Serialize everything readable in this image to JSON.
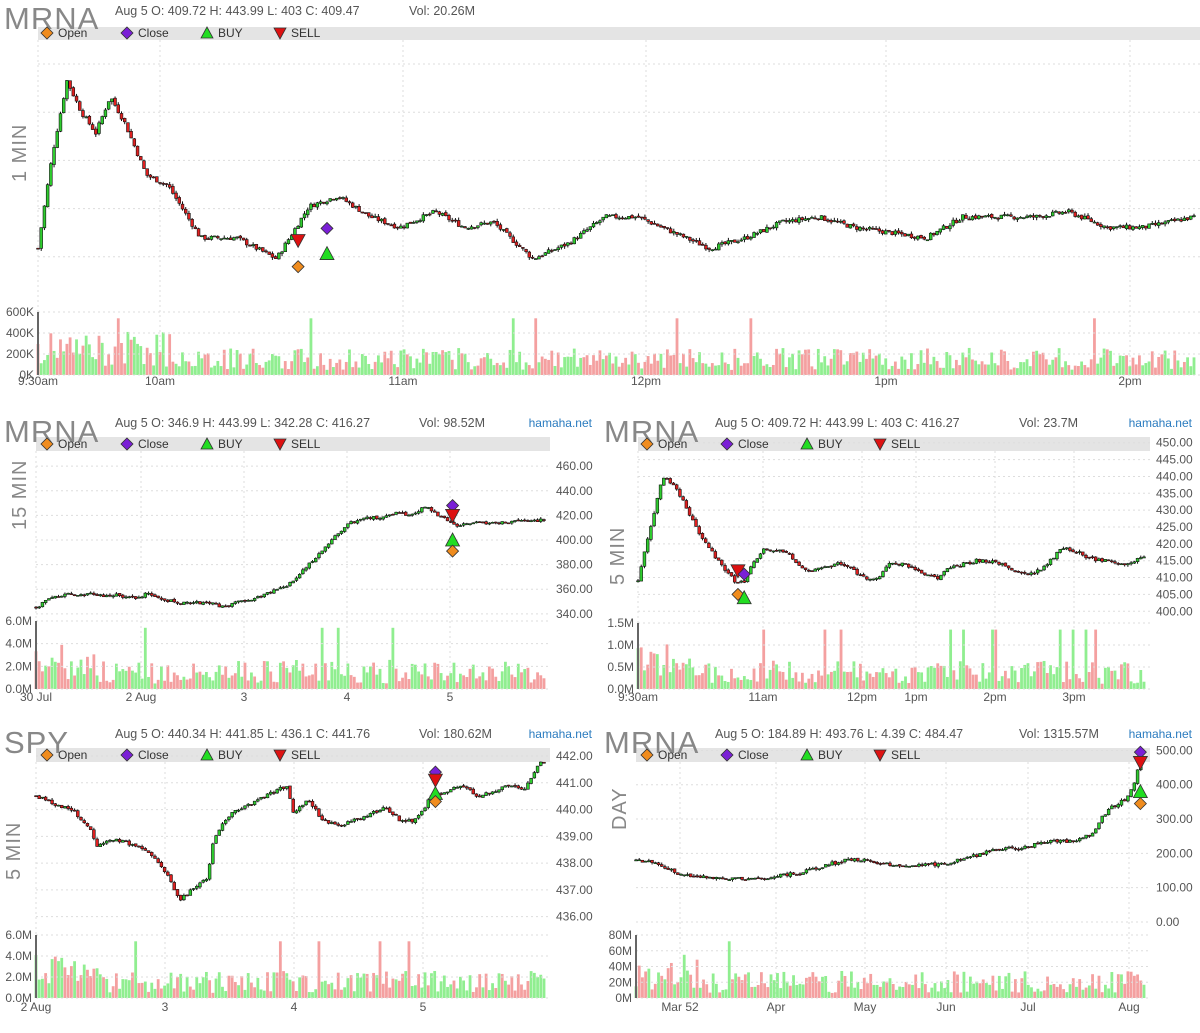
{
  "legend": {
    "open": "Open",
    "close": "Close",
    "buy": "BUY",
    "sell": "SELL"
  },
  "colors": {
    "up": "#2ecc2e",
    "down": "#e02020",
    "vol_up": "#90ee90",
    "vol_down": "#f4a0a0",
    "open_marker": "#f08c1e",
    "close_marker": "#7a1fd6",
    "buy_marker": "#22dd22",
    "sell_marker": "#dd1111",
    "band": "#e4e4e4",
    "grid": "#dddddd",
    "brand": "#2a7bbf"
  },
  "panels": [
    {
      "ticker": "MRNA",
      "timeframe": "1 MIN",
      "ohlc": "Aug 5 O: 409.72 H: 443.99 L: 403 C: 409.47",
      "vol": "Vol: 20.26M",
      "brand": "",
      "chart_data": {
        "type": "candlestick",
        "x_labels": [
          "9:30am",
          "10am",
          "11am",
          "12pm",
          "1pm",
          "2pm"
        ],
        "y_ticks": [],
        "volume_ticks": [
          "600K",
          "400K",
          "200K",
          "0K"
        ],
        "approx_close_path": [
          [
            0,
            407
          ],
          [
            4,
            425
          ],
          [
            8,
            439
          ],
          [
            12,
            433
          ],
          [
            16,
            429
          ],
          [
            20,
            436
          ],
          [
            24,
            431
          ],
          [
            30,
            421
          ],
          [
            36,
            419
          ],
          [
            45,
            409
          ],
          [
            55,
            409
          ],
          [
            66,
            405
          ],
          [
            75,
            415
          ],
          [
            83,
            417
          ],
          [
            92,
            413
          ],
          [
            100,
            411
          ],
          [
            110,
            414
          ],
          [
            118,
            411
          ],
          [
            126,
            412
          ],
          [
            137,
            405
          ],
          [
            147,
            408
          ],
          [
            157,
            413
          ],
          [
            166,
            413
          ],
          [
            176,
            410
          ],
          [
            186,
            407
          ],
          [
            196,
            409
          ],
          [
            206,
            412
          ],
          [
            216,
            413
          ],
          [
            226,
            411
          ],
          [
            236,
            410
          ],
          [
            246,
            409
          ],
          [
            256,
            413
          ],
          [
            266,
            413
          ],
          [
            276,
            413
          ],
          [
            285,
            414
          ],
          [
            296,
            411
          ],
          [
            306,
            411
          ],
          [
            320,
            413
          ]
        ],
        "markers": [
          {
            "type": "SELL",
            "x": 72,
            "value": 408.5
          },
          {
            "type": "Open",
            "x": 72,
            "value": 403.5
          },
          {
            "type": "Close",
            "x": 80,
            "value": 410.8
          },
          {
            "type": "BUY",
            "x": 80,
            "value": 406.0
          }
        ]
      }
    },
    {
      "ticker": "MRNA",
      "timeframe": "15 MIN",
      "ohlc": "Aug 5 O: 346.9 H: 443.99 L: 342.28 C: 416.27",
      "vol": "Vol: 98.52M",
      "brand": "hamaha.net",
      "chart_data": {
        "type": "candlestick",
        "x_labels": [
          "30 Jul",
          "2 Aug",
          "3",
          "4",
          "5"
        ],
        "y_ticks": [
          "460.00",
          "440.00",
          "420.00",
          "400.00",
          "380.00",
          "360.00",
          "340.00"
        ],
        "volume_ticks": [
          "6.0M",
          "4.0M",
          "2.0M",
          "0.0M"
        ],
        "approx_close_path": [
          [
            0,
            345
          ],
          [
            6,
            354
          ],
          [
            13,
            356
          ],
          [
            20,
            356
          ],
          [
            26,
            355
          ],
          [
            33,
            355
          ],
          [
            40,
            352
          ],
          [
            44,
            357
          ],
          [
            50,
            352
          ],
          [
            56,
            349
          ],
          [
            63,
            349
          ],
          [
            70,
            348
          ],
          [
            74,
            346
          ],
          [
            80,
            350
          ],
          [
            86,
            352
          ],
          [
            92,
            358
          ],
          [
            98,
            362
          ],
          [
            103,
            371
          ],
          [
            110,
            386
          ],
          [
            117,
            402
          ],
          [
            124,
            414
          ],
          [
            130,
            418
          ],
          [
            136,
            418
          ],
          [
            142,
            422
          ],
          [
            148,
            420
          ],
          [
            153,
            427
          ],
          [
            160,
            418
          ],
          [
            166,
            410
          ],
          [
            172,
            415
          ],
          [
            178,
            413
          ],
          [
            184,
            414
          ],
          [
            190,
            416
          ],
          [
            196,
            416
          ]
        ],
        "markers": [
          {
            "type": "Close",
            "x": 164,
            "value": 428
          },
          {
            "type": "SELL",
            "x": 164,
            "value": 420
          },
          {
            "type": "BUY",
            "x": 164,
            "value": 400
          },
          {
            "type": "Open",
            "x": 164,
            "value": 391
          }
        ]
      }
    },
    {
      "ticker": "MRNA",
      "timeframe": "5 MIN",
      "ohlc": "Aug 5 O: 409.72 H: 443.99 L: 403 C: 416.27",
      "vol": "Vol: 23.7M",
      "brand": "hamaha.net",
      "chart_data": {
        "type": "candlestick",
        "x_labels": [
          "9:30am",
          "11am",
          "12pm",
          "1pm",
          "2pm",
          "3pm"
        ],
        "y_ticks": [
          "450.00",
          "445.00",
          "440.00",
          "435.00",
          "430.00",
          "425.00",
          "420.00",
          "415.00",
          "410.00",
          "405.00",
          "400.00"
        ],
        "volume_ticks": [
          "1.5M",
          "1.0M",
          "0.5M",
          "0.0M"
        ],
        "approx_close_path": [
          [
            0,
            409
          ],
          [
            2,
            425
          ],
          [
            4,
            440
          ],
          [
            6,
            437
          ],
          [
            8,
            430
          ],
          [
            10,
            422
          ],
          [
            12,
            417
          ],
          [
            14,
            412
          ],
          [
            16,
            408
          ],
          [
            17,
            409
          ],
          [
            18,
            413
          ],
          [
            20,
            418
          ],
          [
            22,
            418
          ],
          [
            24,
            417
          ],
          [
            26,
            413
          ],
          [
            28,
            412
          ],
          [
            30,
            413
          ],
          [
            32,
            414
          ],
          [
            34,
            413
          ],
          [
            36,
            410
          ],
          [
            38,
            409
          ],
          [
            40,
            414
          ],
          [
            42,
            414
          ],
          [
            44,
            413
          ],
          [
            46,
            411
          ],
          [
            48,
            410
          ],
          [
            50,
            413
          ],
          [
            52,
            414
          ],
          [
            54,
            415
          ],
          [
            56,
            415
          ],
          [
            58,
            414
          ],
          [
            60,
            412
          ],
          [
            62,
            411
          ],
          [
            64,
            412
          ],
          [
            66,
            415
          ],
          [
            68,
            419
          ],
          [
            70,
            418
          ],
          [
            72,
            416
          ],
          [
            74,
            415
          ],
          [
            76,
            415
          ],
          [
            78,
            414
          ],
          [
            81,
            416
          ]
        ],
        "markers": [
          {
            "type": "SELL",
            "x": 16,
            "value": 412
          },
          {
            "type": "Open",
            "x": 16,
            "value": 405
          },
          {
            "type": "Close",
            "x": 17,
            "value": 411
          },
          {
            "type": "BUY",
            "x": 17,
            "value": 404
          }
        ]
      }
    },
    {
      "ticker": "SPY",
      "timeframe": "5 MIN",
      "ohlc": "Aug 5 O: 440.34 H: 441.85 L: 436.1 C: 441.76",
      "vol": "Vol: 180.62M",
      "brand": "hamaha.net",
      "chart_data": {
        "type": "candlestick",
        "x_labels": [
          "2 Aug",
          "3",
          "4",
          "5"
        ],
        "y_ticks": [
          "442.00",
          "441.00",
          "440.00",
          "439.00",
          "438.00",
          "437.00",
          "436.00"
        ],
        "volume_ticks": [
          "6.0M",
          "4.0M",
          "2.0M",
          "0.0M"
        ],
        "approx_close_path": [
          [
            0,
            440.5
          ],
          [
            5,
            440.2
          ],
          [
            10,
            439.9
          ],
          [
            14,
            439.3
          ],
          [
            16,
            438.6
          ],
          [
            20,
            438.9
          ],
          [
            25,
            438.7
          ],
          [
            30,
            438.3
          ],
          [
            34,
            437.5
          ],
          [
            37,
            436.6
          ],
          [
            40,
            437.0
          ],
          [
            44,
            437.4
          ],
          [
            46,
            439.0
          ],
          [
            50,
            439.8
          ],
          [
            55,
            440.2
          ],
          [
            60,
            440.6
          ],
          [
            65,
            440.9
          ],
          [
            66,
            439.8
          ],
          [
            70,
            440.4
          ],
          [
            74,
            439.6
          ],
          [
            78,
            439.4
          ],
          [
            82,
            439.6
          ],
          [
            86,
            439.8
          ],
          [
            90,
            440.1
          ],
          [
            94,
            439.6
          ],
          [
            98,
            439.6
          ],
          [
            102,
            440.5
          ],
          [
            106,
            440.7
          ],
          [
            110,
            440.9
          ],
          [
            114,
            440.5
          ],
          [
            118,
            440.7
          ],
          [
            122,
            440.9
          ],
          [
            126,
            440.8
          ],
          [
            130,
            441.8
          ]
        ],
        "markers": [
          {
            "type": "Close",
            "x": 103,
            "value": 441.4
          },
          {
            "type": "SELL",
            "x": 103,
            "value": 441.1
          },
          {
            "type": "BUY",
            "x": 103,
            "value": 440.6
          },
          {
            "type": "Open",
            "x": 103,
            "value": 440.3
          }
        ]
      }
    },
    {
      "ticker": "MRNA",
      "timeframe": "DAY",
      "ohlc": "Aug 5 O: 184.89 H: 493.76 L: 4.39 C: 484.47",
      "vol": "Vol: 1315.57M",
      "brand": "hamaha.net",
      "chart_data": {
        "type": "candlestick",
        "x_labels": [
          "Mar 52",
          "Apr",
          "May",
          "Jun",
          "Jul",
          "Aug"
        ],
        "y_ticks": [
          "500.00",
          "400.00",
          "300.00",
          "200.00",
          "100.00",
          "0.00"
        ],
        "volume_ticks": [
          "80M",
          "60M",
          "40M",
          "20M",
          "0M"
        ],
        "approx_close_path": [
          [
            0,
            180
          ],
          [
            5,
            175
          ],
          [
            8,
            160
          ],
          [
            12,
            140
          ],
          [
            16,
            135
          ],
          [
            22,
            130
          ],
          [
            28,
            125
          ],
          [
            34,
            125
          ],
          [
            40,
            135
          ],
          [
            46,
            145
          ],
          [
            52,
            165
          ],
          [
            58,
            180
          ],
          [
            64,
            180
          ],
          [
            68,
            168
          ],
          [
            74,
            165
          ],
          [
            80,
            165
          ],
          [
            86,
            172
          ],
          [
            90,
            183
          ],
          [
            94,
            195
          ],
          [
            98,
            210
          ],
          [
            102,
            215
          ],
          [
            106,
            215
          ],
          [
            110,
            225
          ],
          [
            114,
            235
          ],
          [
            118,
            235
          ],
          [
            122,
            238
          ],
          [
            126,
            260
          ],
          [
            128,
            300
          ],
          [
            130,
            325
          ],
          [
            132,
            340
          ],
          [
            135,
            360
          ],
          [
            137,
            390
          ],
          [
            139,
            484
          ]
        ],
        "markers": [
          {
            "type": "Close",
            "x": 139,
            "value": 495
          },
          {
            "type": "SELL",
            "x": 139,
            "value": 465
          },
          {
            "type": "BUY",
            "x": 139,
            "value": 380
          },
          {
            "type": "Open",
            "x": 139,
            "value": 345
          }
        ]
      }
    }
  ]
}
